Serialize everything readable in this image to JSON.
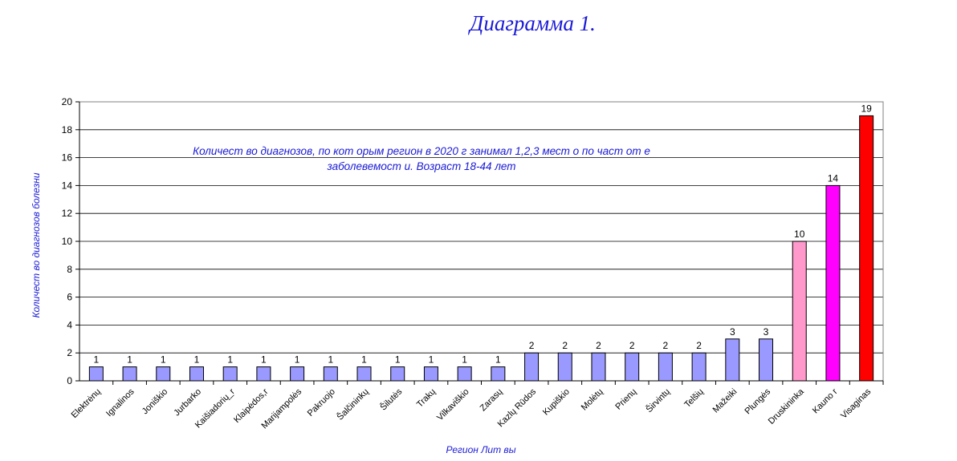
{
  "heading": "Диаграмма 1.",
  "chart_data": {
    "type": "bar",
    "annotation_lines": [
      "Количест во диагнозов, по кот орым регион в 2020 г занимал 1,2,3 мест о по част от е",
      "заболевемост и. Возраст  18-44 лет"
    ],
    "xlabel": "Регион Лит вы",
    "ylabel": "Количест во диагнозов болезни",
    "ylim": [
      0,
      20
    ],
    "yticks": [
      0,
      2,
      4,
      6,
      8,
      10,
      12,
      14,
      16,
      18,
      20
    ],
    "grid": true,
    "legend": "none",
    "categories": [
      "Elektrėnų",
      "Ignalinos",
      "Joniškio",
      "Jurbarko",
      "Kaišiadorių_r",
      "Klaipėdos,r",
      "Marijampolės",
      "Pakruojo",
      "Šalčininkų",
      "Šilutės",
      "Trakų",
      "Vilkaviškio",
      "Zarasų",
      "Kazlų Rūdos",
      "Kupiškio",
      "Molėtų",
      "Prienų",
      "Širvintų",
      "Telšių",
      "Mažeiki",
      "Plungės",
      "Druskininka",
      "Kauno r",
      "Visaginas"
    ],
    "values": [
      1,
      1,
      1,
      1,
      1,
      1,
      1,
      1,
      1,
      1,
      1,
      1,
      1,
      2,
      2,
      2,
      2,
      2,
      2,
      3,
      3,
      10,
      14,
      19
    ],
    "colors": [
      "#9999ff",
      "#9999ff",
      "#9999ff",
      "#9999ff",
      "#9999ff",
      "#9999ff",
      "#9999ff",
      "#9999ff",
      "#9999ff",
      "#9999ff",
      "#9999ff",
      "#9999ff",
      "#9999ff",
      "#9999ff",
      "#9999ff",
      "#9999ff",
      "#9999ff",
      "#9999ff",
      "#9999ff",
      "#9999ff",
      "#9999ff",
      "#ff99cc",
      "#ff00ff",
      "#ff0000"
    ]
  }
}
